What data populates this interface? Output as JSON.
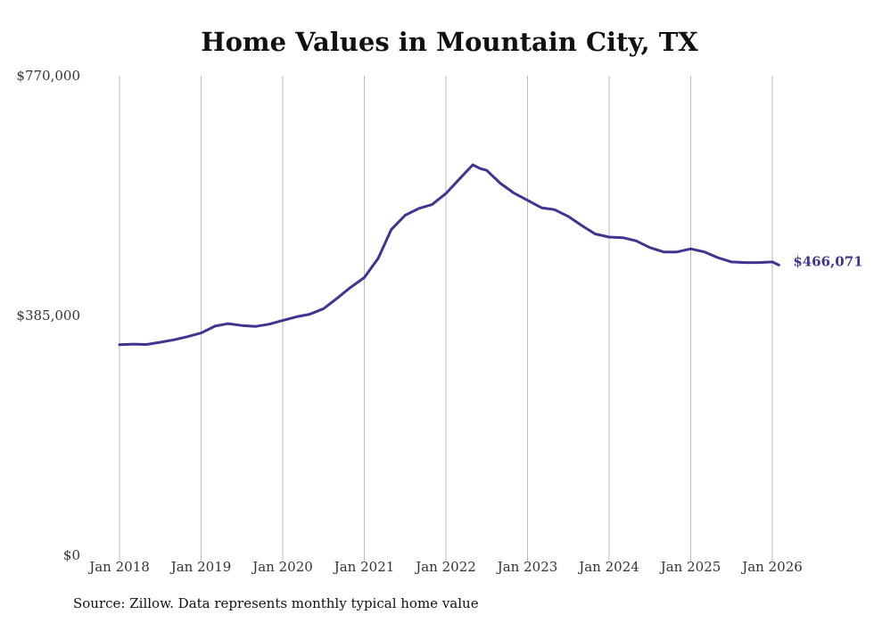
{
  "colors": {
    "line": "#3f3590",
    "grid": "#bbbbbb",
    "text": "#111111"
  },
  "chart_data": {
    "type": "line",
    "title": "Home Values in Mountain City, TX",
    "source": "Source: Zillow. Data represents monthly typical home value",
    "xlabel": "",
    "ylabel": "",
    "ylim": [
      0,
      770000
    ],
    "yticks": [
      {
        "value": 0,
        "label": "$0"
      },
      {
        "value": 385000,
        "label": "$385,000"
      },
      {
        "value": 770000,
        "label": "$770,000"
      }
    ],
    "xticks": [
      {
        "x": 2018,
        "label": "Jan 2018"
      },
      {
        "x": 2019,
        "label": "Jan 2019"
      },
      {
        "x": 2020,
        "label": "Jan 2020"
      },
      {
        "x": 2021,
        "label": "Jan 2021"
      },
      {
        "x": 2022,
        "label": "Jan 2022"
      },
      {
        "x": 2023,
        "label": "Jan 2023"
      },
      {
        "x": 2024,
        "label": "Jan 2024"
      },
      {
        "x": 2025,
        "label": "Jan 2025"
      },
      {
        "x": 2026,
        "label": "Jan 2026"
      }
    ],
    "xlim": [
      2018,
      2026.1
    ],
    "grid": "vertical",
    "end_label": "$466,071",
    "series": [
      {
        "name": "Typical home value",
        "x": [
          2018.0,
          2018.17,
          2018.33,
          2018.5,
          2018.67,
          2018.83,
          2019.0,
          2019.17,
          2019.33,
          2019.5,
          2019.67,
          2019.83,
          2020.0,
          2020.17,
          2020.33,
          2020.5,
          2020.67,
          2020.83,
          2021.0,
          2021.17,
          2021.33,
          2021.5,
          2021.67,
          2021.83,
          2022.0,
          2022.17,
          2022.33,
          2022.42,
          2022.5,
          2022.67,
          2022.83,
          2023.0,
          2023.17,
          2023.33,
          2023.5,
          2023.67,
          2023.83,
          2024.0,
          2024.17,
          2024.33,
          2024.5,
          2024.67,
          2024.83,
          2025.0,
          2025.17,
          2025.33,
          2025.5,
          2025.67,
          2025.83,
          2026.0,
          2026.08
        ],
        "values": [
          338000,
          339000,
          338500,
          342000,
          346000,
          351000,
          357000,
          368000,
          372000,
          369000,
          367500,
          371000,
          377000,
          383000,
          387000,
          396000,
          413000,
          430000,
          446000,
          477000,
          523000,
          546000,
          557000,
          563000,
          581000,
          605000,
          627000,
          621000,
          618000,
          597000,
          582000,
          570000,
          558000,
          555000,
          544000,
          529000,
          516000,
          511000,
          510000,
          505000,
          494000,
          487000,
          487000,
          492000,
          487000,
          478000,
          471000,
          470000,
          470000,
          471000,
          466071
        ]
      }
    ]
  }
}
